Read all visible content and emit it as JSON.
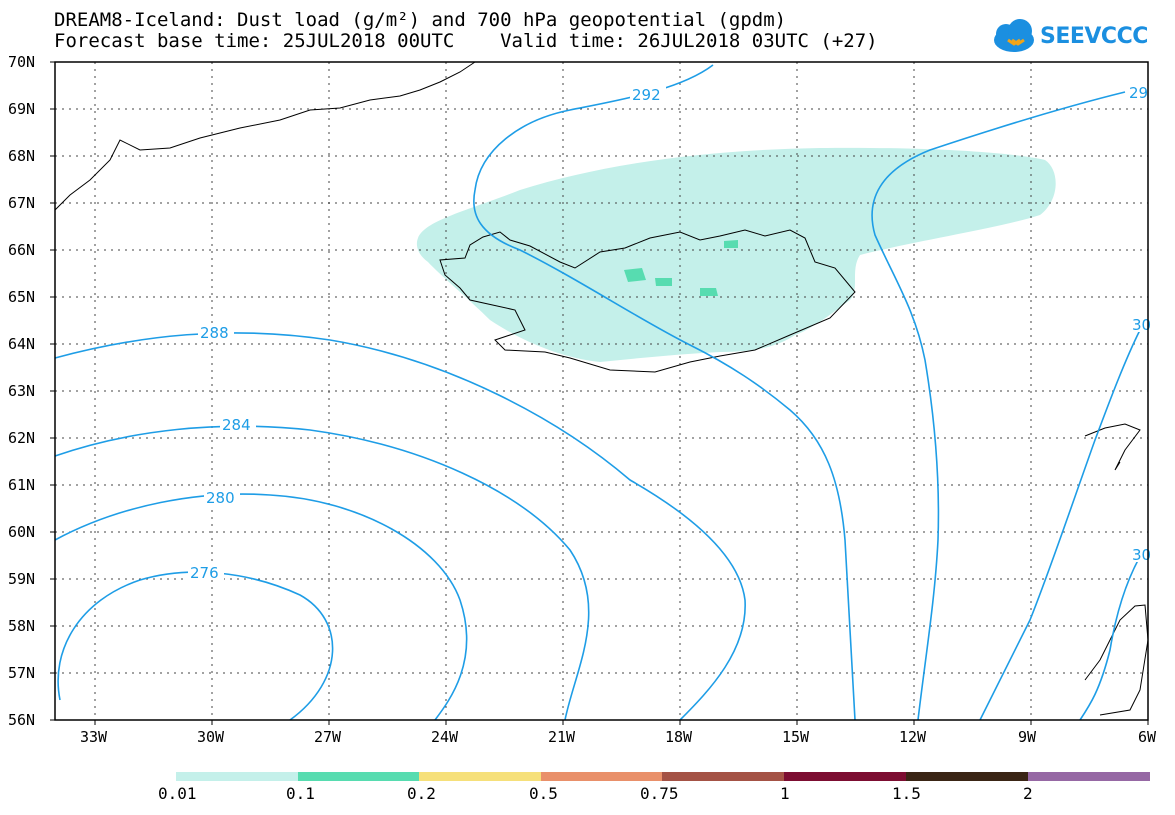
{
  "title": {
    "line1": "DREAM8-Iceland: Dust load (g/m²) and 700 hPa geopotential (gpdm)",
    "line2": "Forecast base time: 25JUL2018 00UTC    Valid time: 26JUL2018 03UTC (+27)"
  },
  "logo": {
    "text": "SEEVCCC",
    "icon": "cloud-icon",
    "color": "#1b8fe0"
  },
  "axes": {
    "lat_labels": [
      "70N",
      "69N",
      "68N",
      "67N",
      "66N",
      "65N",
      "64N",
      "63N",
      "62N",
      "61N",
      "60N",
      "59N",
      "58N",
      "57N",
      "56N"
    ],
    "lon_labels": [
      "33W",
      "30W",
      "27W",
      "24W",
      "21W",
      "18W",
      "15W",
      "12W",
      "9W",
      "6W"
    ]
  },
  "contours": [
    {
      "value": "292",
      "label": "292"
    },
    {
      "value": "29",
      "label": "29"
    },
    {
      "value": "288",
      "label": "288"
    },
    {
      "value": "284",
      "label": "284"
    },
    {
      "value": "280",
      "label": "280"
    },
    {
      "value": "276",
      "label": "276"
    },
    {
      "value": "30",
      "label": "30"
    },
    {
      "value": "30b",
      "label": "30"
    }
  ],
  "colorbar": {
    "colors": [
      "#c4f0ea",
      "#57dcb0",
      "#f6e07a",
      "#e9906a",
      "#a45245",
      "#7c0d31",
      "#3a2515",
      "#9668a4"
    ],
    "labels": [
      "0.01",
      "0.1",
      "0.2",
      "0.5",
      "0.75",
      "1",
      "1.5",
      "2"
    ]
  },
  "colors": {
    "contour": "#1e9de6",
    "dust_low": "#c4f0ea",
    "dust_mid": "#57dcb0"
  }
}
